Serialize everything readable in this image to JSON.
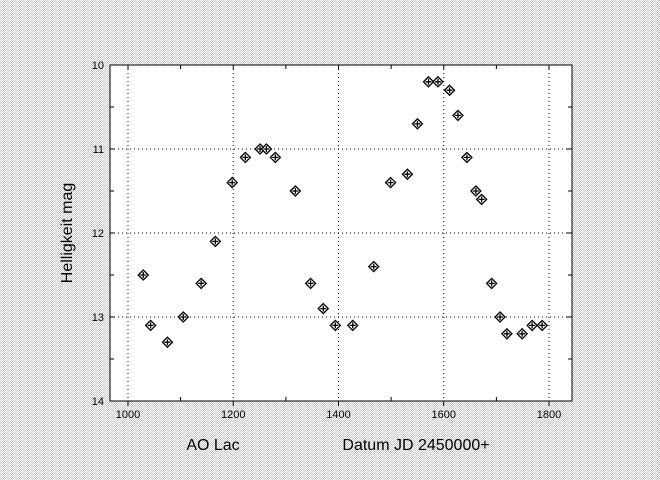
{
  "chart_data": {
    "type": "scatter",
    "title": "AO Lac",
    "xlabel": "Datum JD 2450000+",
    "ylabel": "Helligkeit mag",
    "xlim": [
      965,
      1835
    ],
    "ylim": [
      14,
      10
    ],
    "y_inverted": true,
    "grid": true,
    "marker": "diamond",
    "x_ticks": [
      1000,
      1200,
      1400,
      1600,
      1800
    ],
    "y_ticks": [
      10,
      11,
      12,
      13,
      14
    ],
    "x_tick_labels": [
      "1000",
      "1200",
      "1400",
      "1600",
      "1800"
    ],
    "y_tick_labels": [
      "10",
      "11",
      "12",
      "13",
      "14"
    ],
    "x": [
      1029,
      1043,
      1075,
      1105,
      1139,
      1166,
      1198,
      1223,
      1251,
      1263,
      1280,
      1318,
      1347,
      1371,
      1394,
      1427,
      1467,
      1499,
      1531,
      1550,
      1571,
      1589,
      1611,
      1627,
      1644,
      1661,
      1672,
      1691,
      1707,
      1720,
      1749,
      1768,
      1787
    ],
    "y": [
      12.5,
      13.1,
      13.3,
      13.0,
      12.6,
      12.1,
      11.4,
      11.1,
      11.0,
      11.0,
      11.1,
      11.5,
      12.6,
      12.9,
      13.1,
      13.1,
      12.4,
      11.4,
      11.3,
      10.7,
      10.2,
      10.2,
      10.3,
      10.6,
      11.1,
      11.5,
      11.6,
      12.6,
      13.0,
      13.2,
      13.2,
      13.1,
      13.1
    ]
  }
}
